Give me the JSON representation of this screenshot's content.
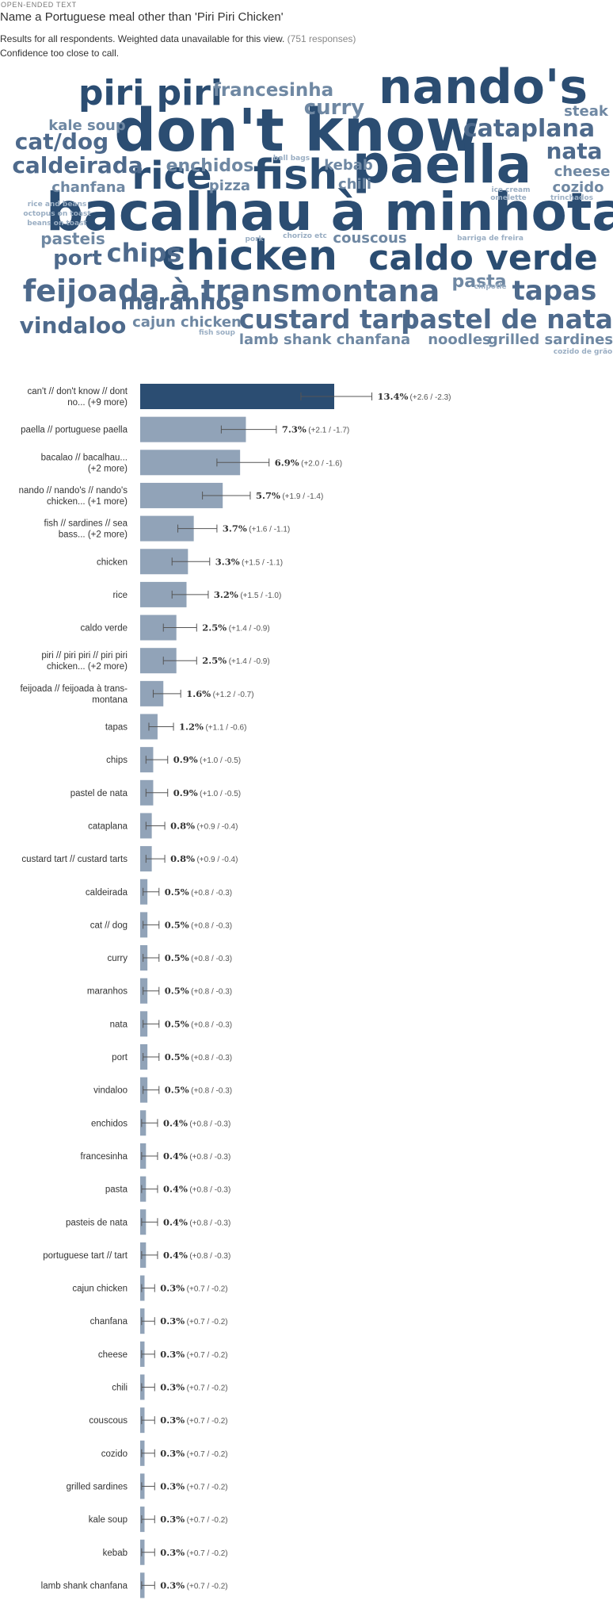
{
  "header": {
    "eyebrow": "OPEN-ENDED TEXT",
    "question": "Name a Portuguese meal other than 'Piri Piri Chicken'",
    "results_text": "Results for all respondents. Weighted data unavailable for this view.",
    "responses_text": "(751 responses)",
    "confidence_text": "Confidence too close to call."
  },
  "wordcloud": {
    "colors": {
      "dark": "#2b4d72",
      "mid": "#4e6a8c",
      "light": "#6f88a3",
      "pale": "#9aaec3"
    },
    "words": [
      {
        "text": "don't know",
        "tone": "dark"
      },
      {
        "text": "nando's",
        "tone": "dark"
      },
      {
        "text": "paella",
        "tone": "dark"
      },
      {
        "text": "bacalhau à minhota",
        "tone": "dark"
      },
      {
        "text": "fish",
        "tone": "dark"
      },
      {
        "text": "rice",
        "tone": "dark"
      },
      {
        "text": "chicken",
        "tone": "dark"
      },
      {
        "text": "caldo verde",
        "tone": "dark"
      },
      {
        "text": "piri piri",
        "tone": "dark"
      },
      {
        "text": "feijoada à transmontana",
        "tone": "mid"
      },
      {
        "text": "custard tart",
        "tone": "mid"
      },
      {
        "text": "pastel de nata",
        "tone": "mid"
      },
      {
        "text": "tapas",
        "tone": "mid"
      },
      {
        "text": "cataplana",
        "tone": "mid"
      },
      {
        "text": "chips",
        "tone": "mid"
      },
      {
        "text": "nata",
        "tone": "mid"
      },
      {
        "text": "caldeirada",
        "tone": "mid"
      },
      {
        "text": "cat/dog",
        "tone": "mid"
      },
      {
        "text": "francesinha",
        "tone": "light"
      },
      {
        "text": "curry",
        "tone": "light"
      },
      {
        "text": "maranhos",
        "tone": "mid"
      },
      {
        "text": "vindaloo",
        "tone": "mid"
      },
      {
        "text": "enchidos",
        "tone": "light"
      },
      {
        "text": "port",
        "tone": "mid"
      },
      {
        "text": "pasta",
        "tone": "light"
      },
      {
        "text": "kale soup",
        "tone": "light"
      },
      {
        "text": "steak",
        "tone": "light"
      },
      {
        "text": "cheese",
        "tone": "light"
      },
      {
        "text": "cozido",
        "tone": "light"
      },
      {
        "text": "pasteis",
        "tone": "light"
      },
      {
        "text": "chanfana",
        "tone": "light"
      },
      {
        "text": "pizza",
        "tone": "light"
      },
      {
        "text": "kebab",
        "tone": "light"
      },
      {
        "text": "chili",
        "tone": "light"
      },
      {
        "text": "couscous",
        "tone": "light"
      },
      {
        "text": "cajun chicken",
        "tone": "light"
      },
      {
        "text": "lamb shank chanfana",
        "tone": "light"
      },
      {
        "text": "noodles",
        "tone": "light"
      },
      {
        "text": "grilled sardines",
        "tone": "light"
      },
      {
        "text": "ball bags",
        "tone": "pale"
      },
      {
        "text": "rice and beans",
        "tone": "pale"
      },
      {
        "text": "octopus on toast",
        "tone": "pale"
      },
      {
        "text": "beans on toast",
        "tone": "pale"
      },
      {
        "text": "ice cream",
        "tone": "pale"
      },
      {
        "text": "omelette",
        "tone": "pale"
      },
      {
        "text": "trinchados",
        "tone": "pale"
      },
      {
        "text": "pork",
        "tone": "pale"
      },
      {
        "text": "chorizo etc",
        "tone": "pale"
      },
      {
        "text": "barriga de freira",
        "tone": "pale"
      },
      {
        "text": "chipotle",
        "tone": "pale"
      },
      {
        "text": "fish soup",
        "tone": "pale"
      },
      {
        "text": "cozido de grão",
        "tone": "pale"
      }
    ]
  },
  "chart_data": {
    "type": "bar",
    "orientation": "horizontal",
    "unit": "%",
    "highlight_color": "#2b4d72",
    "bar_color": "#91a3b8",
    "xlim": [
      0,
      25
    ],
    "categories": [
      "can't // don't know // dont no... (+9 more)",
      "paella // portuguese paella",
      "bacalao // bacalhau... (+2 more)",
      "nando // nando's // nando's chicken... (+1 more)",
      "fish // sardines // sea bass... (+2 more)",
      "chicken",
      "rice",
      "caldo verde",
      "piri // piri piri // piri piri chicken... (+2 more)",
      "feijoada // feijoada à trans-montana",
      "tapas",
      "chips",
      "pastel de nata",
      "cataplana",
      "custard tart // custard tarts",
      "caldeirada",
      "cat // dog",
      "curry",
      "maranhos",
      "nata",
      "port",
      "vindaloo",
      "enchidos",
      "francesinha",
      "pasta",
      "pasteis de nata",
      "portuguese tart // tart",
      "cajun chicken",
      "chanfana",
      "cheese",
      "chili",
      "couscous",
      "cozido",
      "grilled sardines",
      "kale soup",
      "kebab",
      "lamb shank chanfana"
    ],
    "labels": [
      [
        "can't // don't know // dont",
        "no... (+9 more)"
      ],
      [
        "paella // portuguese paella"
      ],
      [
        "bacalao // bacalhau...",
        "(+2 more)"
      ],
      [
        "nando // nando's // nando's",
        "chicken... (+1 more)"
      ],
      [
        "fish // sardines // sea",
        "bass... (+2 more)"
      ],
      [
        "chicken"
      ],
      [
        "rice"
      ],
      [
        "caldo verde"
      ],
      [
        "piri // piri piri // piri piri",
        "chicken... (+2 more)"
      ],
      [
        "feijoada // feijoada à trans-",
        "montana"
      ],
      [
        "tapas"
      ],
      [
        "chips"
      ],
      [
        "pastel de nata"
      ],
      [
        "cataplana"
      ],
      [
        "custard tart // custard tarts"
      ],
      [
        "caldeirada"
      ],
      [
        "cat // dog"
      ],
      [
        "curry"
      ],
      [
        "maranhos"
      ],
      [
        "nata"
      ],
      [
        "port"
      ],
      [
        "vindaloo"
      ],
      [
        "enchidos"
      ],
      [
        "francesinha"
      ],
      [
        "pasta"
      ],
      [
        "pasteis de nata"
      ],
      [
        "portuguese tart // tart"
      ],
      [
        "cajun chicken"
      ],
      [
        "chanfana"
      ],
      [
        "cheese"
      ],
      [
        "chili"
      ],
      [
        "couscous"
      ],
      [
        "cozido"
      ],
      [
        "grilled sardines"
      ],
      [
        "kale soup"
      ],
      [
        "kebab"
      ],
      [
        "lamb shank chanfana"
      ]
    ],
    "values": [
      13.4,
      7.3,
      6.9,
      5.7,
      3.7,
      3.3,
      3.2,
      2.5,
      2.5,
      1.6,
      1.2,
      0.9,
      0.9,
      0.8,
      0.8,
      0.5,
      0.5,
      0.5,
      0.5,
      0.5,
      0.5,
      0.5,
      0.4,
      0.4,
      0.4,
      0.4,
      0.4,
      0.3,
      0.3,
      0.3,
      0.3,
      0.3,
      0.3,
      0.3,
      0.3,
      0.3,
      0.3
    ],
    "value_labels": [
      "13.4%",
      "7.3%",
      "6.9%",
      "5.7%",
      "3.7%",
      "3.3%",
      "3.2%",
      "2.5%",
      "2.5%",
      "1.6%",
      "1.2%",
      "0.9%",
      "0.9%",
      "0.8%",
      "0.8%",
      "0.5%",
      "0.5%",
      "0.5%",
      "0.5%",
      "0.5%",
      "0.5%",
      "0.5%",
      "0.4%",
      "0.4%",
      "0.4%",
      "0.4%",
      "0.4%",
      "0.3%",
      "0.3%",
      "0.3%",
      "0.3%",
      "0.3%",
      "0.3%",
      "0.3%",
      "0.3%",
      "0.3%",
      "0.3%"
    ],
    "error_plus": [
      2.6,
      2.1,
      2.0,
      1.9,
      1.6,
      1.5,
      1.5,
      1.4,
      1.4,
      1.2,
      1.1,
      1.0,
      1.0,
      0.9,
      0.9,
      0.8,
      0.8,
      0.8,
      0.8,
      0.8,
      0.8,
      0.8,
      0.8,
      0.8,
      0.8,
      0.8,
      0.8,
      0.7,
      0.7,
      0.7,
      0.7,
      0.7,
      0.7,
      0.7,
      0.7,
      0.7,
      0.7
    ],
    "error_minus": [
      2.3,
      1.7,
      1.6,
      1.4,
      1.1,
      1.1,
      1.0,
      0.9,
      0.9,
      0.7,
      0.6,
      0.5,
      0.5,
      0.4,
      0.4,
      0.3,
      0.3,
      0.3,
      0.3,
      0.3,
      0.3,
      0.3,
      0.3,
      0.3,
      0.3,
      0.3,
      0.3,
      0.2,
      0.2,
      0.2,
      0.2,
      0.2,
      0.2,
      0.2,
      0.2,
      0.2,
      0.2
    ],
    "error_labels": [
      "(+2.6 / -2.3)",
      "(+2.1 / -1.7)",
      "(+2.0 / -1.6)",
      "(+1.9 / -1.4)",
      "(+1.6 / -1.1)",
      "(+1.5 / -1.1)",
      "(+1.5 / -1.0)",
      "(+1.4 / -0.9)",
      "(+1.4 / -0.9)",
      "(+1.2 / -0.7)",
      "(+1.1 / -0.6)",
      "(+1.0 / -0.5)",
      "(+1.0 / -0.5)",
      "(+0.9 / -0.4)",
      "(+0.9 / -0.4)",
      "(+0.8 / -0.3)",
      "(+0.8 / -0.3)",
      "(+0.8 / -0.3)",
      "(+0.8 / -0.3)",
      "(+0.8 / -0.3)",
      "(+0.8 / -0.3)",
      "(+0.8 / -0.3)",
      "(+0.8 / -0.3)",
      "(+0.8 / -0.3)",
      "(+0.8 / -0.3)",
      "(+0.8 / -0.3)",
      "(+0.8 / -0.3)",
      "(+0.7 / -0.2)",
      "(+0.7 / -0.2)",
      "(+0.7 / -0.2)",
      "(+0.7 / -0.2)",
      "(+0.7 / -0.2)",
      "(+0.7 / -0.2)",
      "(+0.7 / -0.2)",
      "(+0.7 / -0.2)",
      "(+0.7 / -0.2)",
      "(+0.7 / -0.2)"
    ]
  }
}
